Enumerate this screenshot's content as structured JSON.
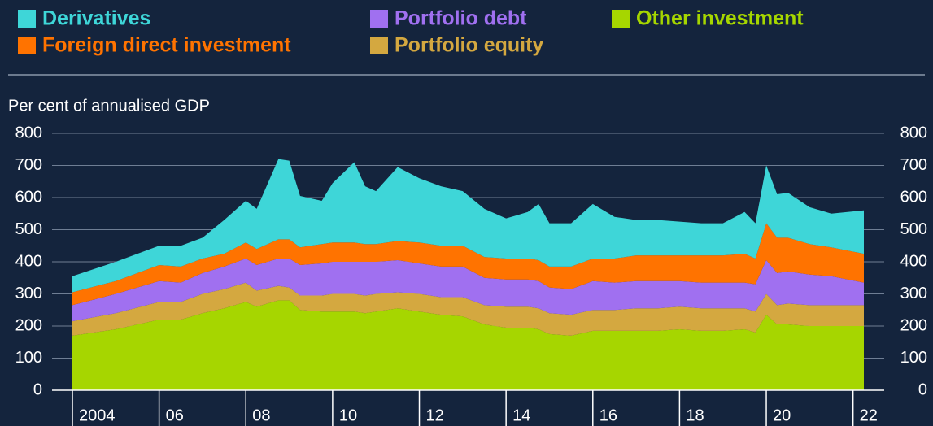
{
  "chart_data": {
    "type": "stacked_area",
    "y_axis_label": "Per cent of annualised GDP",
    "x": [
      2004.0,
      2005.0,
      2006.0,
      2006.5,
      2007.0,
      2007.5,
      2008.0,
      2008.25,
      2008.75,
      2009.0,
      2009.25,
      2009.75,
      2010.0,
      2010.5,
      2010.75,
      2011.0,
      2011.5,
      2012.0,
      2012.5,
      2013.0,
      2013.5,
      2014.0,
      2014.5,
      2014.75,
      2015.0,
      2015.5,
      2016.0,
      2016.5,
      2017.0,
      2017.5,
      2018.0,
      2018.5,
      2019.0,
      2019.5,
      2019.75,
      2020.0,
      2020.25,
      2020.5,
      2021.0,
      2021.5,
      2022.25
    ],
    "series": [
      {
        "name": "Other investment",
        "color": "#a6d600",
        "values": [
          170,
          190,
          220,
          220,
          240,
          255,
          275,
          260,
          280,
          280,
          250,
          245,
          245,
          245,
          240,
          245,
          255,
          245,
          235,
          230,
          205,
          195,
          195,
          190,
          175,
          170,
          185,
          185,
          185,
          185,
          190,
          185,
          185,
          190,
          180,
          235,
          205,
          205,
          200,
          200,
          200
        ]
      },
      {
        "name": "Portfolio equity",
        "color": "#d4a840",
        "values": [
          45,
          50,
          55,
          55,
          60,
          60,
          60,
          50,
          45,
          40,
          45,
          50,
          55,
          55,
          55,
          55,
          50,
          55,
          55,
          60,
          60,
          65,
          65,
          65,
          65,
          65,
          65,
          65,
          70,
          70,
          70,
          70,
          70,
          65,
          65,
          65,
          60,
          65,
          65,
          65,
          65
        ]
      },
      {
        "name": "Portfolio debt",
        "color": "#a070f0",
        "values": [
          50,
          60,
          65,
          60,
          65,
          70,
          75,
          80,
          85,
          90,
          95,
          100,
          100,
          100,
          105,
          100,
          100,
          95,
          95,
          95,
          85,
          85,
          85,
          85,
          80,
          80,
          90,
          85,
          85,
          85,
          80,
          80,
          80,
          80,
          85,
          105,
          100,
          100,
          95,
          90,
          70
        ]
      },
      {
        "name": "Foreign direct investment",
        "color": "#ff7300",
        "values": [
          40,
          40,
          50,
          50,
          45,
          40,
          50,
          50,
          60,
          60,
          55,
          60,
          60,
          60,
          55,
          55,
          60,
          65,
          65,
          65,
          65,
          65,
          65,
          65,
          65,
          70,
          70,
          75,
          80,
          80,
          80,
          85,
          85,
          90,
          80,
          115,
          110,
          105,
          95,
          90,
          90
        ]
      },
      {
        "name": "Derivatives",
        "color": "#3ed6d8",
        "values": [
          50,
          60,
          60,
          65,
          65,
          105,
          130,
          125,
          250,
          245,
          160,
          135,
          185,
          250,
          180,
          165,
          230,
          200,
          185,
          170,
          150,
          125,
          145,
          175,
          135,
          135,
          170,
          130,
          110,
          110,
          105,
          100,
          100,
          130,
          110,
          180,
          135,
          140,
          115,
          105,
          135
        ]
      }
    ],
    "xlim": [
      2004,
      2022.25
    ],
    "xticks": [
      {
        "value": 2004,
        "label": "2004"
      },
      {
        "value": 2006,
        "label": "06"
      },
      {
        "value": 2008,
        "label": "08"
      },
      {
        "value": 2010,
        "label": "10"
      },
      {
        "value": 2012,
        "label": "12"
      },
      {
        "value": 2014,
        "label": "14"
      },
      {
        "value": 2016,
        "label": "16"
      },
      {
        "value": 2018,
        "label": "18"
      },
      {
        "value": 2020,
        "label": "20"
      },
      {
        "value": 2022,
        "label": "22"
      }
    ],
    "ylim": [
      0,
      800
    ],
    "yticks": [
      0,
      100,
      200,
      300,
      400,
      500,
      600,
      700,
      800
    ],
    "grid": true
  }
}
